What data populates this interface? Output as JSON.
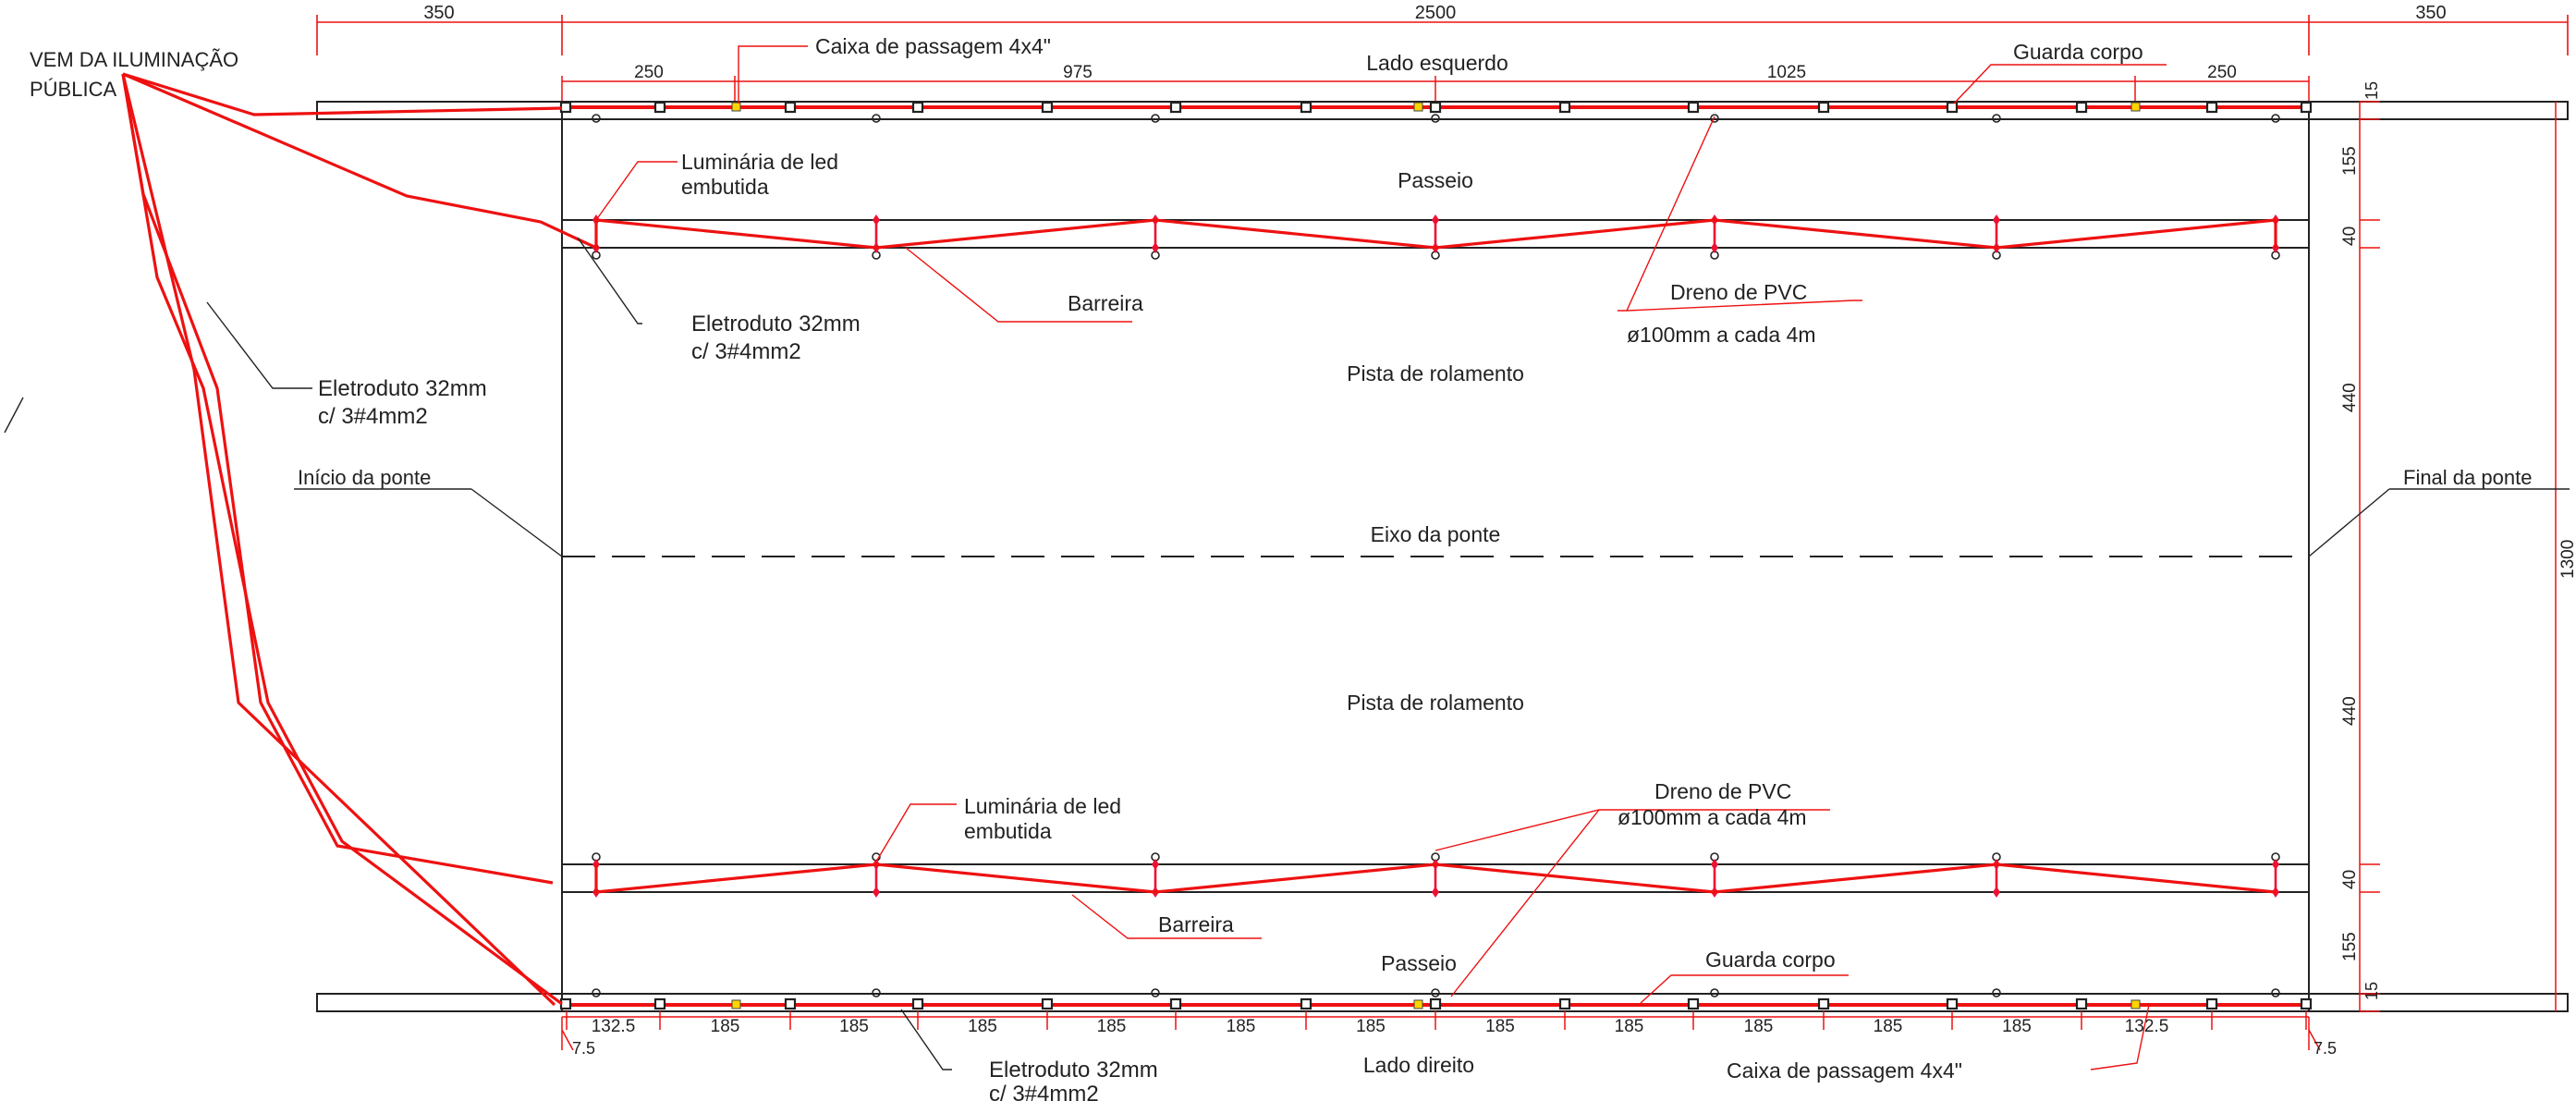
{
  "labels": {
    "from_public_lighting_1": "VEM DA ILUMINAÇÃO",
    "from_public_lighting_2": "PÚBLICA",
    "junction_box_top": "Caixa de passagem 4x4\"",
    "junction_box_bottom": "Caixa de passagem 4x4\"",
    "left_side": "Lado esquerdo",
    "right_side": "Lado direito",
    "railing_top": "Guarda corpo",
    "railing_bottom": "Guarda corpo",
    "sidewalk_top": "Passeio",
    "sidewalk_bottom": "Passeio",
    "luminaire_top_1": "Luminária de led",
    "luminaire_top_2": "embutida",
    "luminaire_bottom_1": "Luminária de led",
    "luminaire_bottom_2": "embutida",
    "conduit_top_1": "Eletroduto 32mm",
    "conduit_top_2": "c/ 3#4mm2",
    "conduit_left_1": "Eletroduto 32mm",
    "conduit_left_2": "c/ 3#4mm2",
    "conduit_bottom_1": "Eletroduto 32mm",
    "conduit_bottom_2": "c/ 3#4mm2",
    "barrier_top": "Barreira",
    "barrier_bottom": "Barreira",
    "drain_top_1": "Dreno de PVC",
    "drain_top_2": "ø100mm a cada 4m",
    "drain_bottom_1": "Dreno de PVC",
    "drain_bottom_2": "ø100mm a cada 4m",
    "roadway_top": "Pista de rolamento",
    "roadway_bottom": "Pista de rolamento",
    "bridge_start": "Início da ponte",
    "bridge_end": "Final da ponte",
    "bridge_axis": "Eixo da ponte"
  },
  "dimensions": {
    "overall": {
      "left": "350",
      "middle": "2500",
      "right": "350"
    },
    "top_segments": [
      "250",
      "975",
      "1025",
      "250"
    ],
    "bottom_segments": [
      "132.5",
      "185",
      "185",
      "185",
      "185",
      "185",
      "185",
      "185",
      "185",
      "185",
      "185",
      "185",
      "132.5"
    ],
    "end_left": "7.5",
    "end_right": "7.5",
    "vertical": [
      "15",
      "155",
      "40",
      "440",
      "440",
      "40",
      "155",
      "15"
    ],
    "total_width": "1300"
  },
  "colors": {
    "conduit": "#ee1111",
    "luminaire": "#ee1133",
    "junction_box": "#ffd400",
    "dimension": "#ee1111",
    "outline": "#222222"
  }
}
